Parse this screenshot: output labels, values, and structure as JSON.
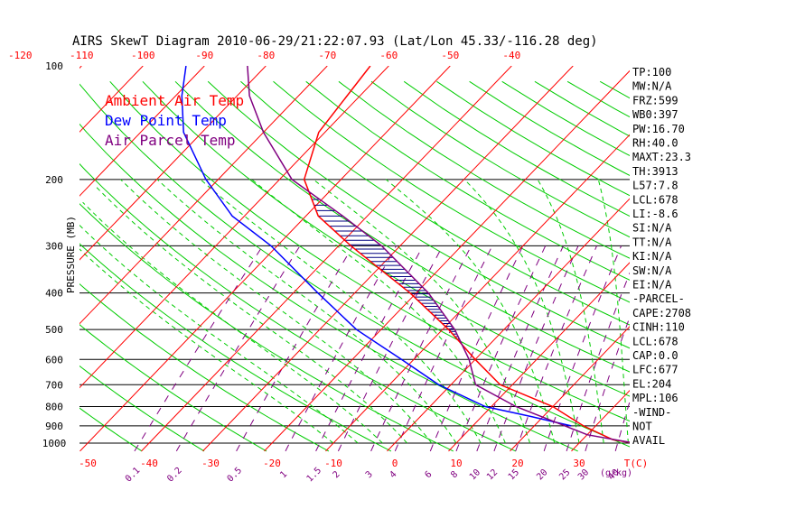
{
  "title": "AIRS SkewT Diagram 2010-06-29/21:22:07.93 (Lat/Lon 45.33/-116.28 deg)",
  "legend": [
    {
      "label": "Ambient Air Temp",
      "color": "#ff0000"
    },
    {
      "label": "Dew Point Temp",
      "color": "#0000ff"
    },
    {
      "label": "Air Parcel Temp",
      "color": "#800080"
    }
  ],
  "indices": [
    "TP:100",
    "MW:N/A",
    "FRZ:599",
    "WB0:397",
    "PW:16.70",
    "RH:40.0",
    "MAXT:23.3",
    "TH:3913",
    "L57:7.8",
    "LCL:678",
    "LI:-8.6",
    "SI:N/A",
    "TT:N/A",
    "KI:N/A",
    "SW:N/A",
    "EI:N/A",
    "-PARCEL-",
    "CAPE:2708",
    "CINH:110",
    "LCL:678",
    "CAP:0.0",
    "LFC:677",
    "EL:204",
    "MPL:106",
    "-WIND-",
    "NOT",
    "AVAIL"
  ],
  "chart_data": {
    "type": "line",
    "title": "AIRS SkewT Diagram 2010-06-29/21:22:07.93 (Lat/Lon 45.33/-116.28 deg)",
    "ylabel": "PRESSURE (MB)",
    "pressure_ticks": [
      100,
      200,
      300,
      400,
      500,
      600,
      700,
      800,
      900,
      1000
    ],
    "top_temp_ticks": [
      -120,
      -110,
      -100,
      -90,
      -80,
      -70,
      -60,
      -50,
      -40
    ],
    "bottom_temp_ticks": [
      -50,
      -40,
      -30,
      -20,
      -10,
      0,
      10,
      20,
      30
    ],
    "bottom_temp_unit": "T(C)",
    "mixing_ratio_ticks": [
      "0.1",
      "0.2",
      "0.5",
      "1",
      "1.5",
      "2",
      "3",
      "4",
      "6",
      "8",
      "10",
      "12",
      "15",
      "20",
      "25",
      "30",
      "40"
    ],
    "mixing_ratio_unit": "(g/kg)",
    "series": [
      {
        "name": "Ambient Air Temp",
        "color": "#ff0000",
        "points": [
          [
            1000,
            39
          ],
          [
            980,
            35
          ],
          [
            900,
            28
          ],
          [
            800,
            20
          ],
          [
            700,
            8
          ],
          [
            600,
            0
          ],
          [
            500,
            -9
          ],
          [
            400,
            -21
          ],
          [
            300,
            -38
          ],
          [
            250,
            -48
          ],
          [
            200,
            -56
          ],
          [
            150,
            -61
          ],
          [
            100,
            -63
          ]
        ]
      },
      {
        "name": "Dew Point Temp",
        "color": "#0000ff",
        "points": [
          [
            900,
            26
          ],
          [
            850,
            18
          ],
          [
            800,
            9
          ],
          [
            700,
            -2
          ],
          [
            600,
            -12
          ],
          [
            500,
            -24
          ],
          [
            400,
            -36
          ],
          [
            300,
            -51
          ],
          [
            250,
            -62
          ],
          [
            200,
            -72
          ],
          [
            150,
            -83
          ],
          [
            120,
            -89
          ],
          [
            100,
            -93
          ]
        ]
      },
      {
        "name": "Air Parcel Temp",
        "color": "#800080",
        "points": [
          [
            1000,
            39
          ],
          [
            950,
            30
          ],
          [
            900,
            25
          ],
          [
            800,
            14
          ],
          [
            700,
            4
          ],
          [
            600,
            -1
          ],
          [
            500,
            -8
          ],
          [
            400,
            -18
          ],
          [
            300,
            -33
          ],
          [
            250,
            -44
          ],
          [
            200,
            -58
          ],
          [
            150,
            -70
          ],
          [
            120,
            -78
          ],
          [
            100,
            -83
          ]
        ]
      }
    ]
  }
}
